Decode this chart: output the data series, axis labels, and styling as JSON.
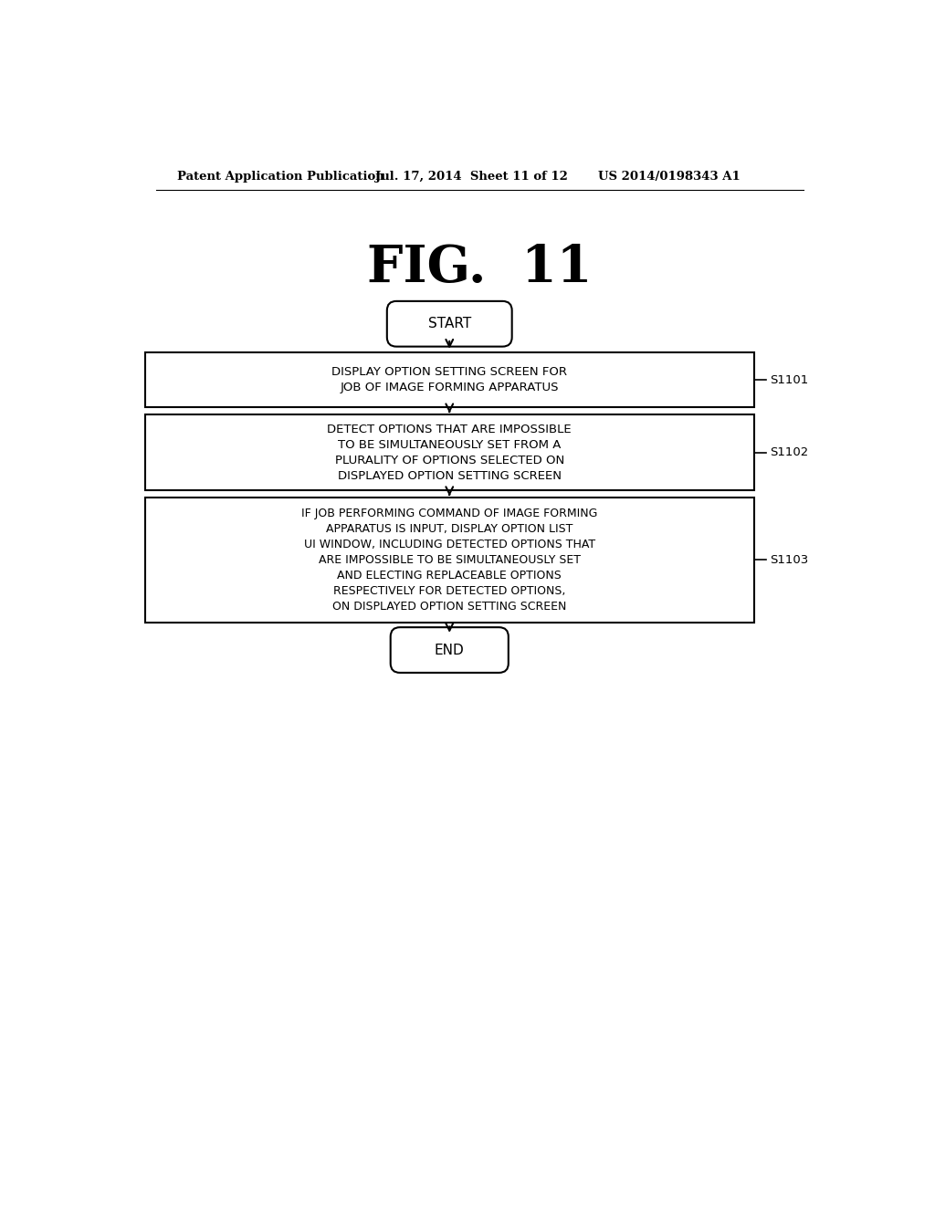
{
  "title": "FIG.  11",
  "header_left": "Patent Application Publication",
  "header_mid": "Jul. 17, 2014  Sheet 11 of 12",
  "header_right": "US 2014/0198343 A1",
  "background_color": "#ffffff",
  "text_color": "#000000",
  "start_label": "START",
  "end_label": "END",
  "boxes": [
    {
      "label": "DISPLAY OPTION SETTING SCREEN FOR\nJOB OF IMAGE FORMING APPARATUS",
      "step": "S1101"
    },
    {
      "label": "DETECT OPTIONS THAT ARE IMPOSSIBLE\nTO BE SIMULTANEOUSLY SET FROM A\nPLURALITY OF OPTIONS SELECTED ON\nDISPLAYED OPTION SETTING SCREEN",
      "step": "S1102"
    },
    {
      "label": "IF JOB PERFORMING COMMAND OF IMAGE FORMING\nAPPARATUS IS INPUT, DISPLAY OPTION LIST\nUI WINDOW, INCLUDING DETECTED OPTIONS THAT\nARE IMPOSSIBLE TO BE SIMULTANEOUSLY SET\nAND ELECTING REPLACEABLE OPTIONS\nRESPECTIVELY FOR DETECTED OPTIONS,\nON DISPLAYED OPTION SETTING SCREEN",
      "step": "S1103"
    }
  ]
}
